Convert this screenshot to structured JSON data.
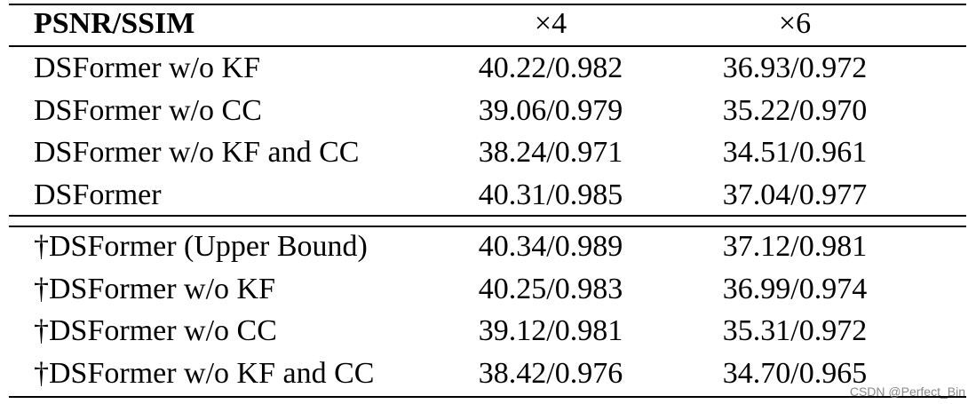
{
  "table": {
    "header": [
      "PSNR/SSIM",
      "×4",
      "×6"
    ],
    "rows": [
      [
        "DSFormer w/o KF",
        "40.22/0.982",
        "36.93/0.972"
      ],
      [
        "DSFormer w/o CC",
        "39.06/0.979",
        "35.22/0.970"
      ],
      [
        "DSFormer w/o KF and CC",
        "38.24/0.971",
        "34.51/0.961"
      ],
      [
        "DSFormer",
        "40.31/0.985",
        "37.04/0.977"
      ],
      [
        "†DSFormer (Upper Bound)",
        "40.34/0.989",
        "37.12/0.981"
      ],
      [
        "†DSFormer w/o KF",
        "40.25/0.983",
        "36.99/0.974"
      ],
      [
        "†DSFormer w/o CC",
        "39.12/0.981",
        "35.31/0.972"
      ],
      [
        "†DSFormer w/o KF and CC",
        "38.42/0.976",
        "34.70/0.965"
      ]
    ]
  },
  "watermark": "CSDN @Perfect_Bin"
}
